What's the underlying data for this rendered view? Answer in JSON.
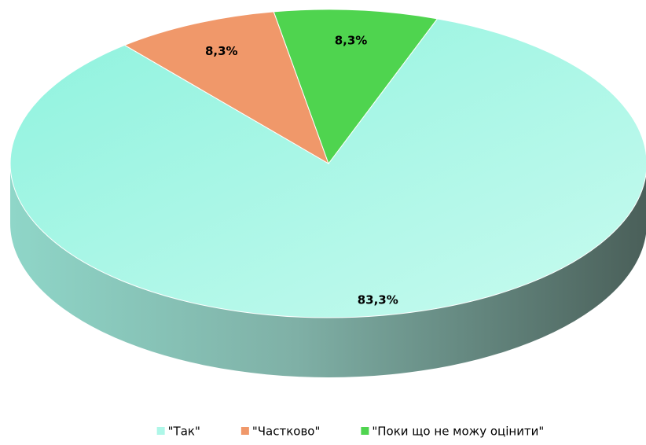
{
  "chart_data": {
    "type": "pie",
    "categories": [
      "\"Так\"",
      "\"Частково\"",
      "\"Поки що не можу оцінити\""
    ],
    "values": [
      83.3,
      8.3,
      8.3
    ],
    "value_labels": [
      "83,3%",
      "8,3%",
      "8,3%"
    ],
    "colors": [
      "#aef7e8",
      "#f0986a",
      "#4fd44f"
    ],
    "legend": "bottom"
  }
}
